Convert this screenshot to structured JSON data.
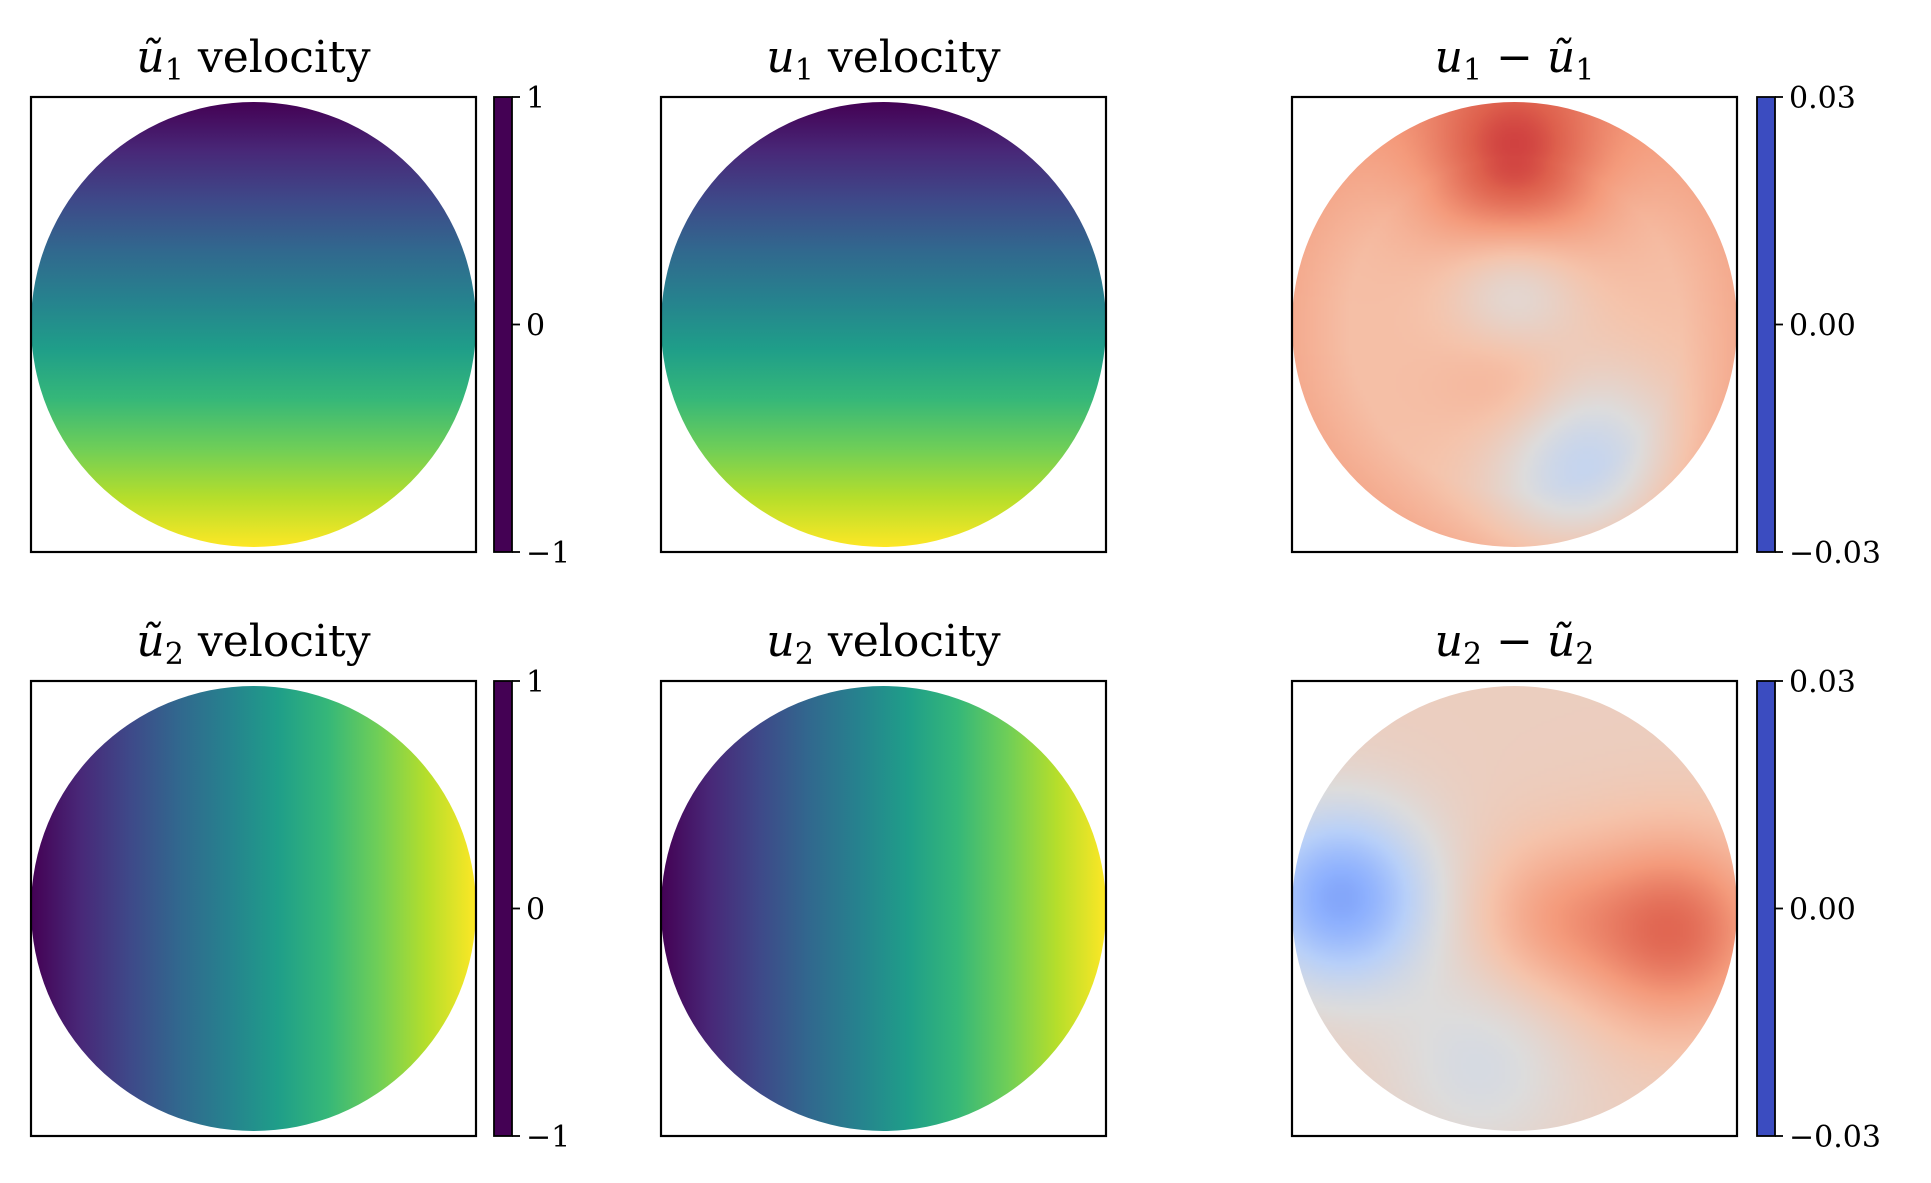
{
  "colors": {
    "viridis": [
      "#440154",
      "#482878",
      "#3e4989",
      "#31688e",
      "#26828e",
      "#1f9e89",
      "#35b779",
      "#6ece58",
      "#b5de2b",
      "#fde725"
    ],
    "coolwarm": [
      "#3b4cc0",
      "#6282ea",
      "#8db0fe",
      "#b8d0f9",
      "#dddcdc",
      "#f5c4ac",
      "#f49a7b",
      "#de604d",
      "#b40426"
    ],
    "frame": "#000000"
  },
  "chart_data": [
    {
      "type": "heatmap",
      "domain": "disk",
      "title": [
        "ũ",
        "1",
        " velocity"
      ],
      "colormap": "viridis",
      "field": "y",
      "colorbar": {
        "vmin": -1,
        "vmax": 1,
        "ticks": [
          "1",
          "0",
          "−1"
        ]
      }
    },
    {
      "type": "heatmap",
      "domain": "disk",
      "title": [
        "u",
        "1",
        " velocity"
      ],
      "colormap": "viridis",
      "field": "y",
      "colorbar": null
    },
    {
      "type": "heatmap",
      "domain": "disk",
      "title": [
        "u",
        "1",
        " − ",
        "ũ",
        "1"
      ],
      "colormap": "coolwarm",
      "field": "error_u1",
      "colorbar": {
        "vmin": -0.03,
        "vmax": 0.03,
        "ticks": [
          "0.03",
          "0.00",
          "−0.03"
        ]
      }
    },
    {
      "type": "heatmap",
      "domain": "disk",
      "title": [
        "ũ",
        "2",
        " velocity"
      ],
      "colormap": "viridis",
      "field": "x",
      "colorbar": {
        "vmin": -1,
        "vmax": 1,
        "ticks": [
          "1",
          "0",
          "−1"
        ]
      }
    },
    {
      "type": "heatmap",
      "domain": "disk",
      "title": [
        "u",
        "2",
        " velocity"
      ],
      "colormap": "viridis",
      "field": "x",
      "colorbar": null
    },
    {
      "type": "heatmap",
      "domain": "disk",
      "title": [
        "u",
        "2",
        " − ",
        "ũ",
        "2"
      ],
      "colormap": "coolwarm",
      "field": "error_u2",
      "colorbar": {
        "vmin": -0.03,
        "vmax": 0.03,
        "ticks": [
          "0.03",
          "0.00",
          "−0.03"
        ]
      }
    }
  ]
}
